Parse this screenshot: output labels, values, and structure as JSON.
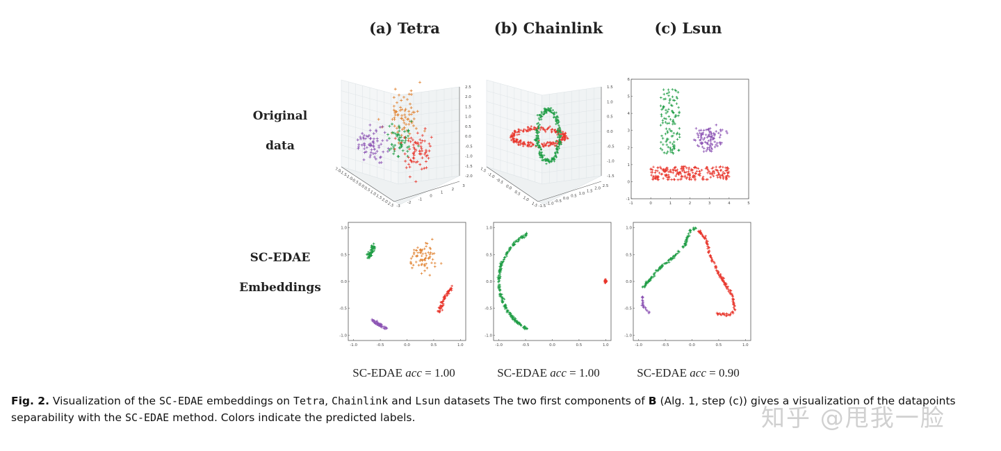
{
  "columns": [
    {
      "title": "(a) Tetra"
    },
    {
      "title": "(b) Chainlink"
    },
    {
      "title": "(c) Lsun"
    }
  ],
  "rows": [
    {
      "line1": "Original",
      "line2": "data"
    },
    {
      "line1": "SC-EDAE",
      "line2": "Embeddings"
    }
  ],
  "accuracy": [
    {
      "method": "SC-EDAE",
      "symbol": "acc",
      "value": "= 1.00"
    },
    {
      "method": "SC-EDAE",
      "symbol": "acc",
      "value": "= 1.00"
    },
    {
      "method": "SC-EDAE",
      "symbol": "acc",
      "value": "= 0.90"
    }
  ],
  "caption": {
    "label": "Fig. 2.",
    "t1": " Visualization of the ",
    "m1": "SC-EDAE",
    "t2": " embeddings on ",
    "m2": "Tetra",
    "t3": ", ",
    "m3": "Chainlink",
    "t4": " and ",
    "m4": "Lsun",
    "t5": " datasets The two first components of ",
    "b1": "B",
    "t6": " (Alg. 1, step (c)) gives a visualization of the datapoints separability with the ",
    "m5": "SC-EDAE",
    "t7": " method. Colors indicate the predicted labels."
  },
  "watermark": "知乎 @甩我一脸",
  "colors": {
    "green": "#1f9d45",
    "red": "#e8352b",
    "orange": "#e0812f",
    "purple": "#8b52b3",
    "axis": "#555555",
    "grid": "#dde3e6"
  },
  "chart_data": [
    {
      "id": "tetra-original",
      "type": "scatter3d",
      "z_ticks": [
        "2.5",
        "2.0",
        "1.5",
        "1.0",
        "0.5",
        "0.0",
        "-0.5",
        "-1.0",
        "-1.5",
        "-2.0"
      ],
      "x_ticks": [
        "-2.0",
        "-1.5",
        "-1.0",
        "-0.5",
        "0.0",
        "0.5",
        "1.0",
        "1.5",
        "2.0",
        "2.5"
      ],
      "y_ticks": [
        "-3",
        "-2",
        "-1",
        "0",
        "1",
        "2",
        "3"
      ],
      "marker": "+",
      "clusters": [
        "orange",
        "purple",
        "green",
        "red"
      ]
    },
    {
      "id": "chainlink-original",
      "type": "scatter3d",
      "z_ticks": [
        "1.5",
        "1.0",
        "0.5",
        "0.0",
        "-0.5",
        "-1.0",
        "-1.5"
      ],
      "x_ticks": [
        "-1.5",
        "-1.0",
        "-0.5",
        "0.0",
        "0.5",
        "1.0",
        "1.5"
      ],
      "y_ticks": [
        "-1.5",
        "-1.0",
        "-0.5",
        "0.0",
        "0.5",
        "1.0",
        "1.5",
        "2.0",
        "2.5"
      ],
      "marker": "+",
      "clusters": [
        "red",
        "green"
      ]
    },
    {
      "id": "lsun-original",
      "type": "scatter",
      "xlim": [
        -1,
        5
      ],
      "ylim": [
        -1,
        6
      ],
      "x_ticks": [
        "-1",
        "0",
        "1",
        "2",
        "3",
        "4",
        "5"
      ],
      "y_ticks": [
        "-1",
        "0",
        "1",
        "2",
        "3",
        "4",
        "5",
        "6"
      ],
      "marker": "+",
      "clusters": [
        {
          "color": "green",
          "kind": "uniform",
          "x": [
            0.5,
            1.5
          ],
          "y": [
            1.6,
            5.4
          ],
          "n": 110
        },
        {
          "color": "purple",
          "kind": "gauss",
          "center": [
            2.9,
            2.5
          ],
          "spread": [
            0.4,
            0.35
          ],
          "n": 100
        },
        {
          "color": "red",
          "kind": "uniform",
          "x": [
            0,
            4
          ],
          "y": [
            0.1,
            0.9
          ],
          "n": 220
        }
      ]
    },
    {
      "id": "tetra-embedding",
      "type": "scatter",
      "xlim": [
        -1.1,
        1.1
      ],
      "ylim": [
        -1.1,
        1.1
      ],
      "x_ticks": [
        "-1.0",
        "-0.5",
        "0.0",
        "0.5",
        "1.0"
      ],
      "y_ticks": [
        "-1.0",
        "-0.5",
        "0.0",
        "0.5",
        "1.0"
      ],
      "marker": "+",
      "clusters": [
        {
          "color": "green",
          "kind": "path",
          "points": [
            [
              -0.72,
              0.45
            ],
            [
              -0.62,
              0.67
            ]
          ],
          "noise": 0.02,
          "n": 60
        },
        {
          "color": "orange",
          "kind": "gauss",
          "center": [
            0.32,
            0.45
          ],
          "spread": [
            0.14,
            0.11
          ],
          "n": 70
        },
        {
          "color": "red",
          "kind": "path",
          "points": [
            [
              0.6,
              -0.58
            ],
            [
              0.7,
              -0.3
            ],
            [
              0.85,
              -0.1
            ]
          ],
          "noise": 0.02,
          "n": 60
        },
        {
          "color": "purple",
          "kind": "path",
          "points": [
            [
              -0.65,
              -0.73
            ],
            [
              -0.4,
              -0.88
            ]
          ],
          "noise": 0.015,
          "n": 50
        }
      ]
    },
    {
      "id": "chainlink-embedding",
      "type": "scatter",
      "xlim": [
        -1.1,
        1.1
      ],
      "ylim": [
        -1.1,
        1.1
      ],
      "x_ticks": [
        "-1.0",
        "-0.5",
        "0.0",
        "0.5",
        "1.0"
      ],
      "y_ticks": [
        "-1.0",
        "-0.5",
        "0.0",
        "0.5",
        "1.0"
      ],
      "marker": "+",
      "clusters": [
        {
          "color": "green",
          "kind": "arc",
          "center": [
            0,
            0
          ],
          "radius": 1.0,
          "angles": [
            118,
            242
          ],
          "noise": 0.012,
          "n": 220
        },
        {
          "color": "red",
          "kind": "gauss",
          "center": [
            1.0,
            0.0
          ],
          "spread": [
            0.008,
            0.015
          ],
          "n": 40
        }
      ]
    },
    {
      "id": "lsun-embedding",
      "type": "scatter",
      "xlim": [
        -1.1,
        1.1
      ],
      "ylim": [
        -1.1,
        1.1
      ],
      "x_ticks": [
        "-1.0",
        "-0.5",
        "0.0",
        "0.5",
        "1.0"
      ],
      "y_ticks": [
        "-1.0",
        "-0.5",
        "0.0",
        "0.5",
        "1.0"
      ],
      "marker": "+",
      "clusters": [
        {
          "color": "green",
          "kind": "path",
          "points": [
            [
              -0.92,
              -0.12
            ],
            [
              -0.6,
              0.25
            ],
            [
              -0.3,
              0.5
            ],
            [
              -0.12,
              0.7
            ],
            [
              -0.03,
              0.95
            ],
            [
              0.08,
              1.0
            ]
          ],
          "noise": 0.012,
          "n": 130
        },
        {
          "color": "red",
          "kind": "path",
          "points": [
            [
              0.12,
              0.95
            ],
            [
              0.25,
              0.8
            ],
            [
              0.35,
              0.45
            ],
            [
              0.5,
              0.15
            ],
            [
              0.65,
              -0.1
            ],
            [
              0.77,
              -0.3
            ],
            [
              0.8,
              -0.55
            ],
            [
              0.7,
              -0.63
            ],
            [
              0.48,
              -0.6
            ]
          ],
          "noise": 0.012,
          "n": 150
        },
        {
          "color": "purple",
          "kind": "path",
          "points": [
            [
              -0.93,
              -0.22
            ],
            [
              -0.92,
              -0.45
            ],
            [
              -0.8,
              -0.58
            ]
          ],
          "noise": 0.01,
          "n": 25
        }
      ]
    }
  ]
}
